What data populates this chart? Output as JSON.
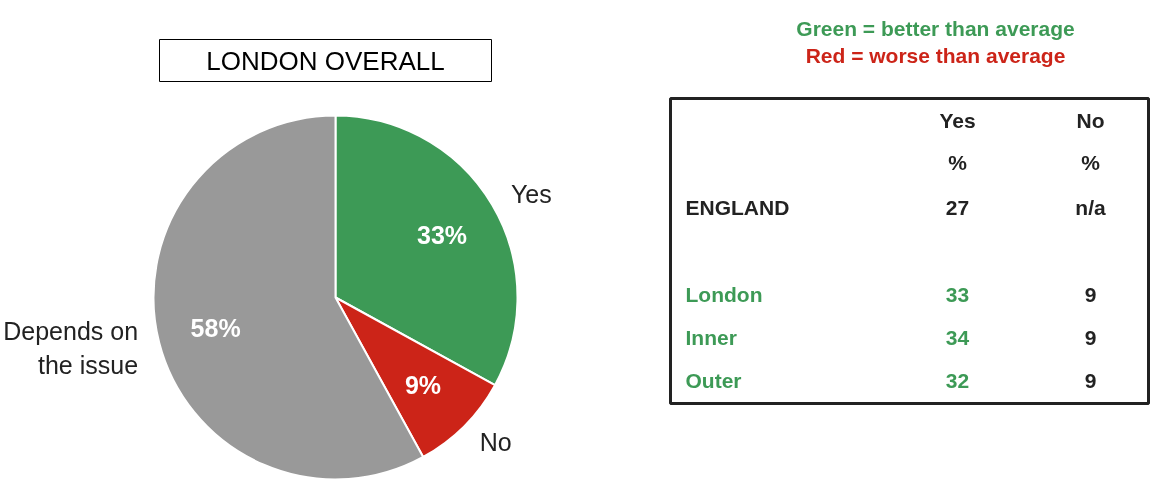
{
  "chart_data": [
    {
      "type": "pie",
      "title": "LONDON OVERALL",
      "categories": [
        "Yes",
        "No",
        "Depends on the issue"
      ],
      "values": [
        33,
        9,
        58
      ],
      "colors": [
        "#3d9a56",
        "#cc2418",
        "#999999"
      ],
      "value_labels": [
        "33%",
        "9%",
        "58%"
      ]
    },
    {
      "type": "other",
      "annotations": [
        "Green = better than average",
        "Red = worse than average",
        "%",
        "%"
      ],
      "categories": [
        "Yes",
        "No"
      ],
      "y_categories": [
        "ENGLAND",
        "London",
        "Inner",
        "Outer"
      ],
      "cell_labels": [
        [
          "27",
          "n/a"
        ],
        [
          "33",
          "9"
        ],
        [
          "34",
          "9"
        ],
        [
          "32",
          "9"
        ]
      ]
    }
  ]
}
